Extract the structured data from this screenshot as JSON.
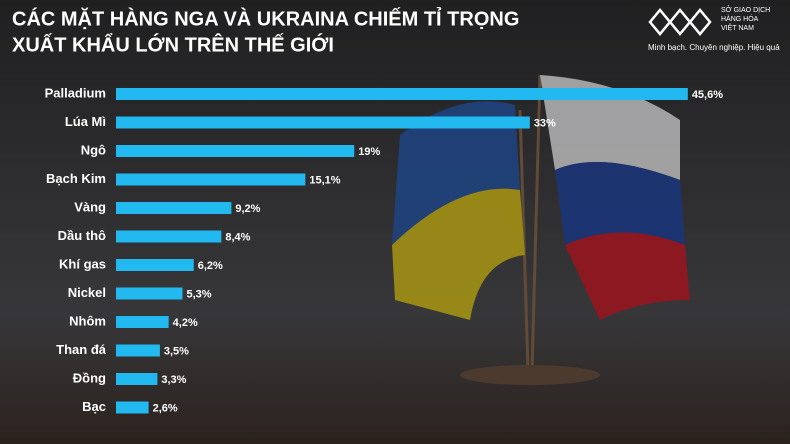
{
  "chart_data": {
    "type": "hbar",
    "title": [
      "CÁC MẶT HÀNG NGA VÀ UKRAINA CHIẾM TỈ TRỌNG",
      "XUẤT KHẨU LỚN TRÊN THẾ GIỚI"
    ],
    "categories": [
      "Palladium",
      "Lúa Mì",
      "Ngô",
      "Bạch Kim",
      "Vàng",
      "Dầu thô",
      "Khí gas",
      "Nickel",
      "Nhôm",
      "Than đá",
      "Đồng",
      "Bạc"
    ],
    "values": [
      45.6,
      33,
      19,
      15.1,
      9.2,
      8.4,
      6.2,
      5.3,
      4.2,
      3.5,
      3.3,
      2.6
    ],
    "value_labels": [
      "45,6%",
      "33%",
      "19%",
      "15,1%",
      "9,2%",
      "8,4%",
      "6,2%",
      "5,3%",
      "4,2%",
      "3,5%",
      "3,3%",
      "2,6%"
    ],
    "color": "#22b8f0"
  },
  "brand": {
    "name": [
      "SỞ GIAO DỊCH",
      "HÀNG HÓA",
      "VIỆT NAM"
    ],
    "tagline": "Minh bạch. Chuyên nghiệp. Hiệu quả"
  }
}
